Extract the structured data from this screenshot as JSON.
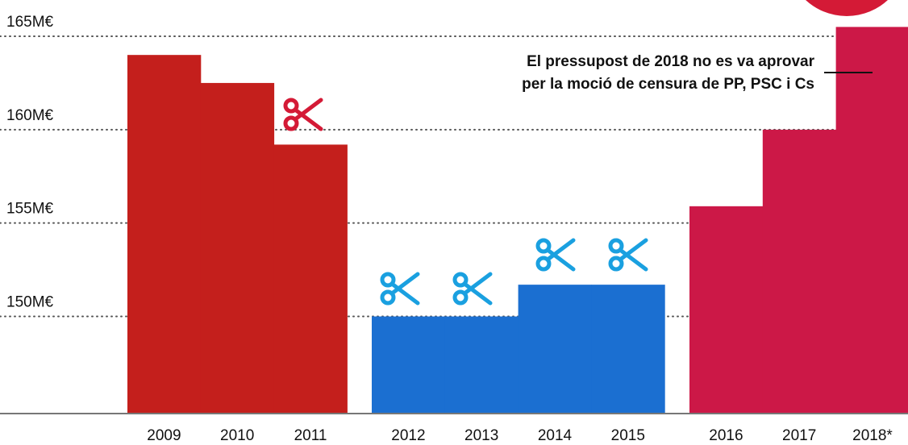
{
  "chart_data": {
    "type": "bar",
    "annotation": [
      "El pressupost de 2018 no es va aprovar",
      "per la moció de censura de PP, PSC i Cs"
    ],
    "categories": [
      "2009",
      "2010",
      "2011",
      "2012",
      "2013",
      "2014",
      "2015",
      "2016",
      "2017",
      "2018*"
    ],
    "values": [
      164,
      162.5,
      159.2,
      150,
      150,
      151.7,
      151.7,
      155.9,
      160,
      165.5
    ],
    "colors": [
      "#c41f1c",
      "#c41f1c",
      "#c41f1c",
      "#1b6fd1",
      "#1b6fd1",
      "#1b6fd1",
      "#1b6fd1",
      "#cc1847",
      "#cc1847",
      "#cc1847"
    ],
    "ylim": [
      144.8,
      165
    ],
    "yticks": [
      {
        "value": 150,
        "label": "150M€"
      },
      {
        "value": 155,
        "label": "155M€"
      },
      {
        "value": 160,
        "label": "160M€"
      },
      {
        "value": 165,
        "label": "165M€"
      }
    ],
    "grid": true
  }
}
